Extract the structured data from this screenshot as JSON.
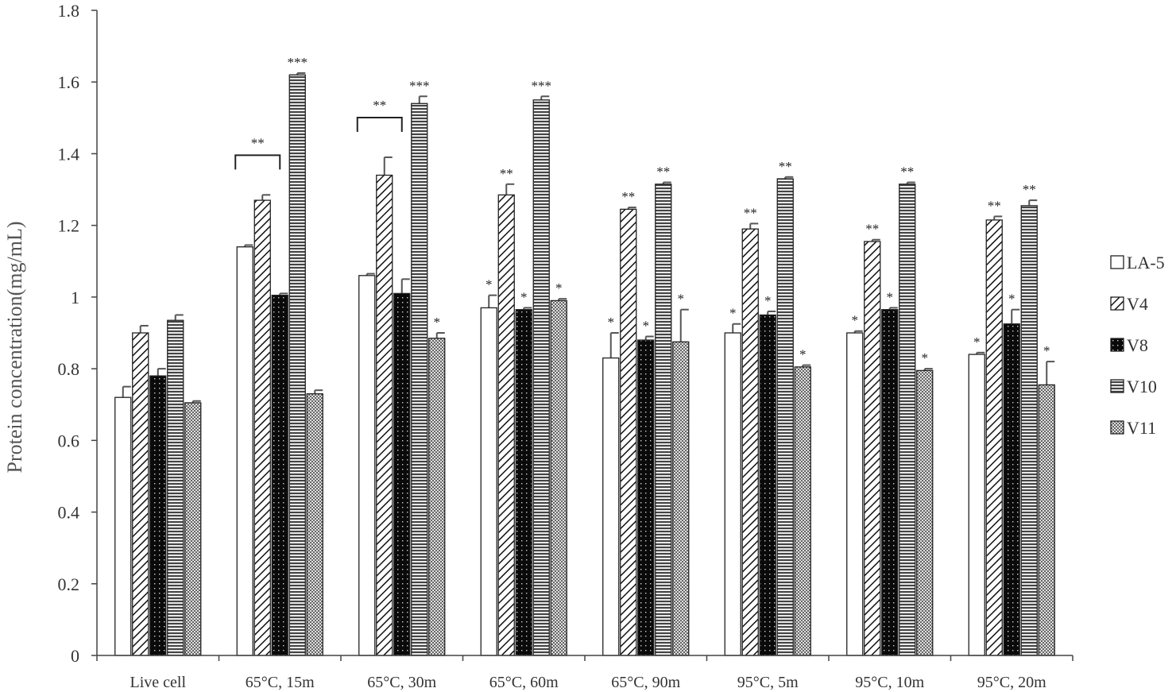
{
  "chart_data": {
    "type": "bar",
    "title": "",
    "xlabel": "",
    "ylabel": "Protein concentration(mg/mL)",
    "ylim": [
      0,
      1.8
    ],
    "yticks": [
      0,
      0.2,
      0.4,
      0.6,
      0.8,
      1,
      1.2,
      1.4,
      1.6,
      1.8
    ],
    "ytick_labels": [
      "0",
      "0.2",
      "0.4",
      "0.6",
      "0.8",
      "1",
      "1.2",
      "1.4",
      "1.6",
      "1.8"
    ],
    "grid": false,
    "legend_position": "right",
    "categories": [
      "Live cell",
      "65°C, 15m",
      "65°C, 30m",
      "65°C, 60m",
      "65°C, 90m",
      "95°C, 5m",
      "95°C, 10m",
      "95°C, 20m"
    ],
    "series": [
      {
        "name": "LA-5",
        "pattern": "white",
        "values": [
          0.72,
          1.14,
          1.06,
          0.97,
          0.83,
          0.9,
          0.9,
          0.84
        ],
        "errors": [
          0.03,
          0.005,
          0.005,
          0.035,
          0.07,
          0.025,
          0.005,
          0.005
        ],
        "sig": [
          "",
          "",
          "",
          "*",
          "*",
          "*",
          "*",
          "*"
        ]
      },
      {
        "name": "V4",
        "pattern": "diagonal",
        "values": [
          0.9,
          1.27,
          1.34,
          1.285,
          1.245,
          1.19,
          1.155,
          1.215
        ],
        "errors": [
          0.02,
          0.015,
          0.05,
          0.03,
          0.005,
          0.015,
          0.005,
          0.01
        ],
        "sig": [
          "",
          "",
          "",
          "**",
          "**",
          "**",
          "**",
          "**"
        ]
      },
      {
        "name": "V8",
        "pattern": "dots",
        "values": [
          0.78,
          1.005,
          1.01,
          0.965,
          0.88,
          0.95,
          0.965,
          0.925
        ],
        "errors": [
          0.02,
          0.005,
          0.04,
          0.005,
          0.01,
          0.01,
          0.005,
          0.04
        ],
        "sig": [
          "",
          "",
          "",
          "*",
          "*",
          "*",
          "*",
          "*"
        ]
      },
      {
        "name": "V10",
        "pattern": "horizontal",
        "values": [
          0.935,
          1.62,
          1.54,
          1.55,
          1.315,
          1.33,
          1.315,
          1.255
        ],
        "errors": [
          0.015,
          0.005,
          0.02,
          0.01,
          0.005,
          0.005,
          0.005,
          0.015
        ],
        "sig": [
          "",
          "***",
          "***",
          "***",
          "**",
          "**",
          "**",
          "**"
        ]
      },
      {
        "name": "V11",
        "pattern": "checker",
        "values": [
          0.705,
          0.73,
          0.885,
          0.99,
          0.875,
          0.805,
          0.795,
          0.755
        ],
        "errors": [
          0.005,
          0.01,
          0.015,
          0.005,
          0.09,
          0.005,
          0.005,
          0.065
        ],
        "sig": [
          "",
          "",
          "*",
          "*",
          "*",
          "*",
          "*",
          "*"
        ]
      }
    ],
    "brackets": [
      {
        "category_index": 1,
        "from_series": 0,
        "to_series": 1,
        "label": "**"
      },
      {
        "category_index": 2,
        "from_series": 0,
        "to_series": 1,
        "label": "**"
      }
    ]
  }
}
